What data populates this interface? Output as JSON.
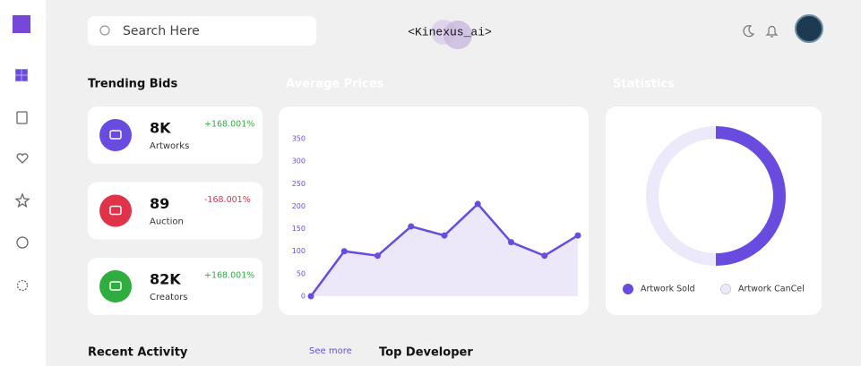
{
  "header": {
    "search_placeholder": "Search Here",
    "logo": "<Kinexus_ai>"
  },
  "trending_bids": {
    "title": "Trending Bids",
    "cards": [
      {
        "value": "8K",
        "label": "Artworks",
        "change": "+168.001%"
      },
      {
        "value": "89",
        "label": "Auction",
        "change": "-168.001%"
      },
      {
        "value": "82K",
        "label": "Creators",
        "change": "+168.001%"
      }
    ]
  },
  "chart_data": [
    {
      "type": "line",
      "title": "Average Prices",
      "categories": [
        null,
        null,
        null,
        null,
        null,
        null,
        null,
        null,
        null
      ],
      "values": [
        0,
        100,
        90,
        155,
        135,
        205,
        120,
        90,
        135
      ],
      "color": "#6a4be0",
      "area_color": "#ece8fa",
      "ylim": [
        0,
        350
      ],
      "yticks": [
        0,
        50,
        100,
        150,
        200,
        250,
        300,
        350
      ]
    },
    {
      "type": "pie",
      "title": "Statistics",
      "categories": [
        "Artwork Sold",
        "Artwork CanCel"
      ],
      "values": [
        50,
        50
      ],
      "colors": [
        "#6a4be0",
        "#ece9fb"
      ]
    }
  ],
  "recent_activity": {
    "title": "Recent Activity",
    "link": "See more"
  },
  "top_developer": {
    "title": "Top Developer"
  }
}
